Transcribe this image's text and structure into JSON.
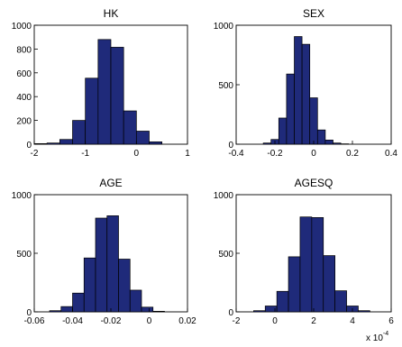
{
  "colors": {
    "bar": "#1f2a7a",
    "edge": "#000000",
    "background": "#ffffff"
  },
  "chart_data": [
    {
      "type": "bar",
      "title": "HK",
      "xlim": [
        -2,
        1
      ],
      "ylim": [
        0,
        1000
      ],
      "xticks": [
        -2,
        -1,
        0,
        1
      ],
      "yticks": [
        0,
        200,
        400,
        600,
        800,
        1000
      ],
      "xtick_labels": [
        "-2",
        "-1",
        "0",
        "1"
      ],
      "ytick_labels": [
        "0",
        "200",
        "400",
        "600",
        "800",
        "1000"
      ],
      "bin_edges": [
        -2.0,
        -1.75,
        -1.5,
        -1.25,
        -1.0,
        -0.75,
        -0.5,
        -0.25,
        0.0,
        0.25
      ],
      "values": [
        5,
        10,
        40,
        200,
        555,
        880,
        815,
        280,
        110,
        20
      ]
    },
    {
      "type": "bar",
      "title": "SEX",
      "xlim": [
        -0.4,
        0.4
      ],
      "ylim": [
        0,
        1000
      ],
      "xticks": [
        -0.4,
        -0.2,
        0,
        0.2,
        0.4
      ],
      "yticks": [
        0,
        500,
        1000
      ],
      "xtick_labels": [
        "-0.4",
        "-0.2",
        "0",
        "0.2",
        "0.4"
      ],
      "ytick_labels": [
        "0",
        "500",
        "1000"
      ],
      "bin_edges": [
        -0.26,
        -0.22,
        -0.18,
        -0.14,
        -0.1,
        -0.06,
        -0.02,
        0.02,
        0.06,
        0.1,
        0.14
      ],
      "values": [
        10,
        40,
        220,
        590,
        905,
        840,
        390,
        120,
        35,
        10,
        3
      ]
    },
    {
      "type": "bar",
      "title": "AGE",
      "xlim": [
        -0.06,
        0.02
      ],
      "ylim": [
        0,
        1000
      ],
      "xticks": [
        -0.06,
        -0.04,
        -0.02,
        0,
        0.02
      ],
      "yticks": [
        0,
        500,
        1000
      ],
      "xtick_labels": [
        "-0.06",
        "-0.04",
        "-0.02",
        "0",
        "0.02"
      ],
      "ytick_labels": [
        "0",
        "500",
        "1000"
      ],
      "bin_edges": [
        -0.052,
        -0.046,
        -0.04,
        -0.034,
        -0.028,
        -0.022,
        -0.016,
        -0.01,
        -0.004,
        0.002
      ],
      "values": [
        10,
        45,
        160,
        460,
        800,
        820,
        450,
        185,
        40,
        5
      ]
    },
    {
      "type": "bar",
      "title": "AGESQ",
      "xlim": [
        -2,
        6
      ],
      "ylim": [
        0,
        1000
      ],
      "xticks": [
        -2,
        0,
        2,
        4,
        6
      ],
      "yticks": [
        0,
        500,
        1000
      ],
      "xtick_labels": [
        "-2",
        "0",
        "2",
        "4",
        "6"
      ],
      "ytick_labels": [
        "0",
        "500",
        "1000"
      ],
      "exponent_label": "x 10",
      "exponent_power": "-4",
      "bin_edges": [
        -1.1,
        -0.5,
        0.1,
        0.7,
        1.3,
        1.9,
        2.5,
        3.1,
        3.7,
        4.3
      ],
      "values": [
        10,
        50,
        175,
        470,
        810,
        805,
        480,
        180,
        50,
        10
      ]
    }
  ]
}
